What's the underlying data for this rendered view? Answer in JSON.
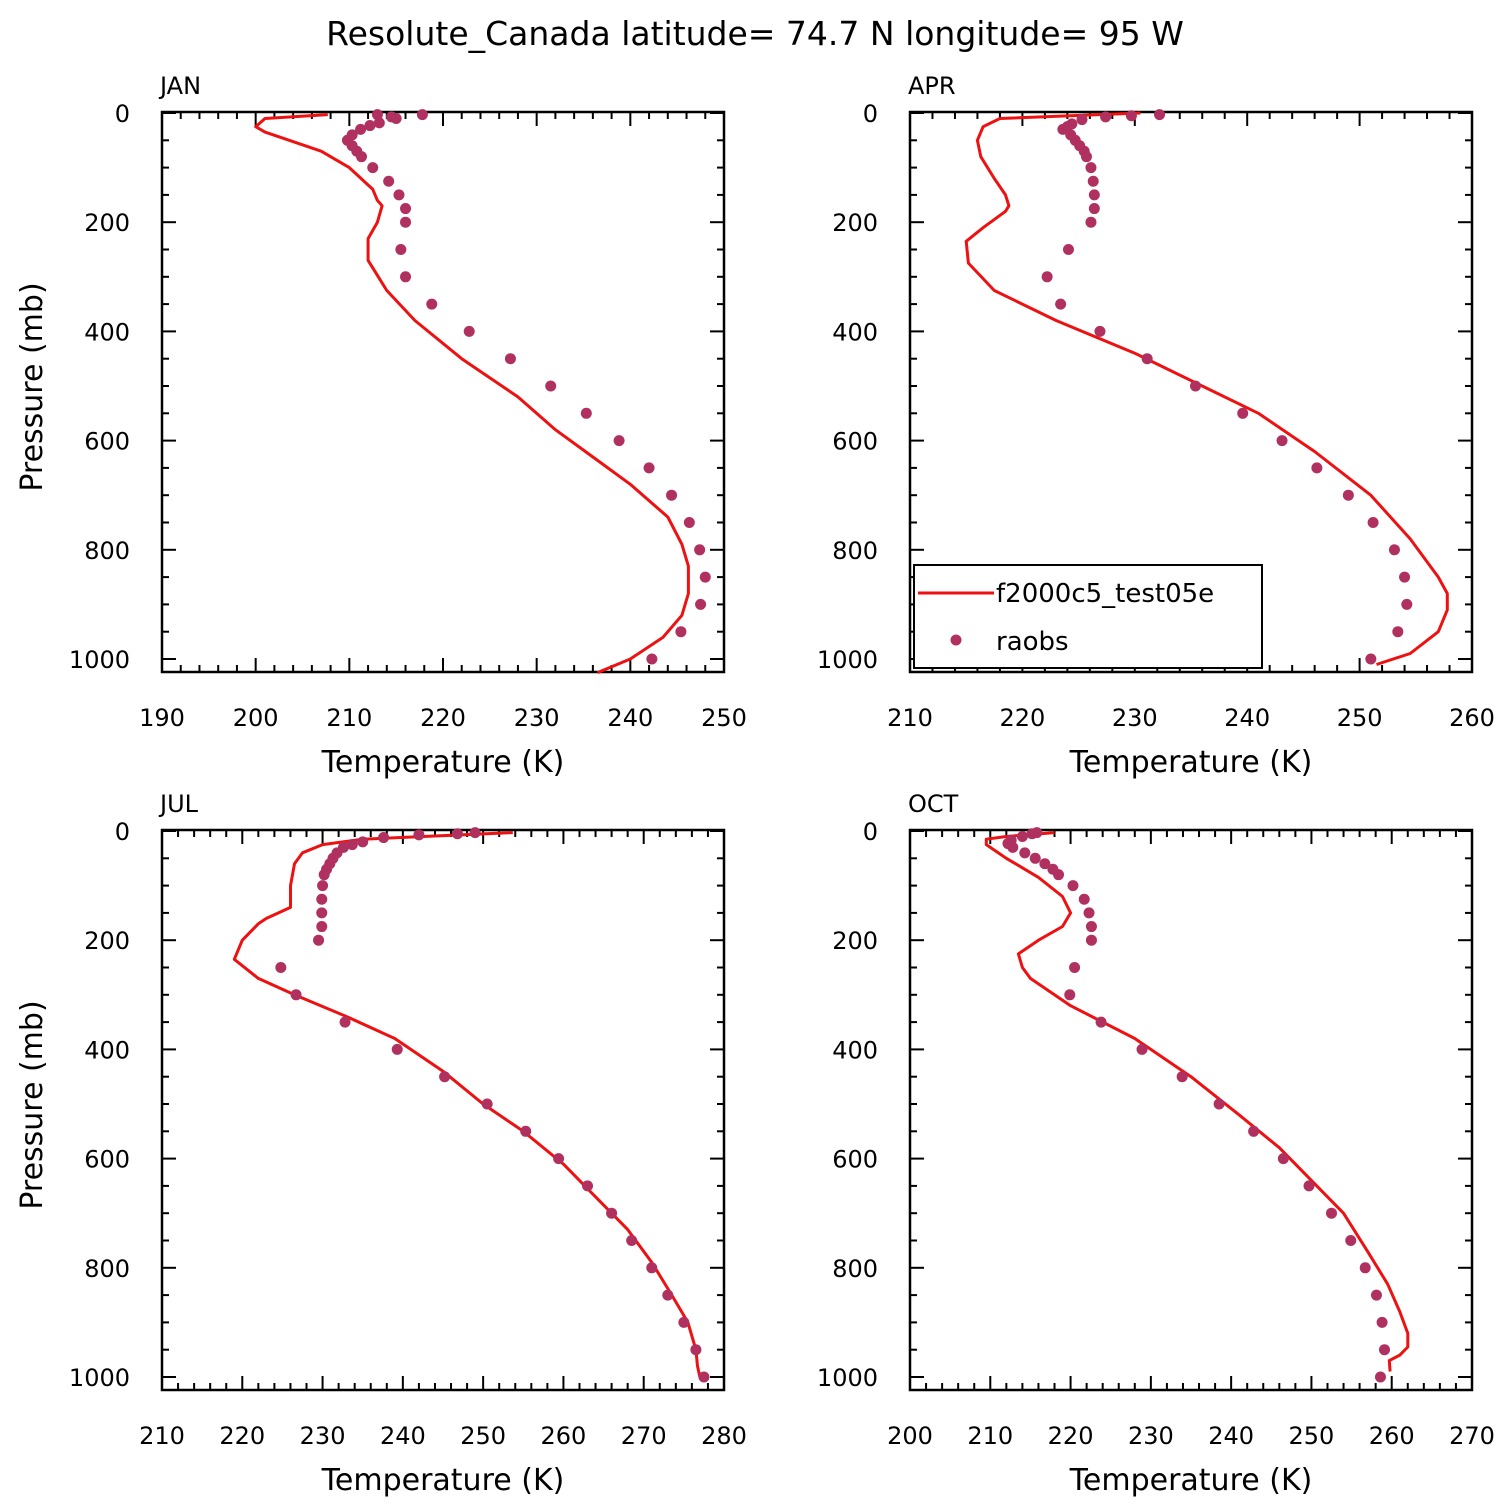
{
  "title": "Resolute_Canada  latitude= 74.7 N longitude= 95 W",
  "legend": {
    "model_label": "f2000c5_test05e",
    "obs_label": "raobs"
  },
  "colors": {
    "model": "#ee1111",
    "obs": "#b03060",
    "axes": "#000000"
  },
  "chart_data": [
    {
      "type": "line",
      "panel": "JAN",
      "xlabel": "Temperature (K)",
      "ylabel": "Pressure (mb)",
      "xlim": [
        190,
        250
      ],
      "xticks": [
        190,
        200,
        210,
        220,
        230,
        240,
        250
      ],
      "ylim": [
        1000,
        0
      ],
      "yticks": [
        0,
        200,
        400,
        600,
        800,
        1000
      ],
      "series": [
        {
          "name": "f2000c5_test05e",
          "kind": "line",
          "points": [
            [
              207.7,
              3
            ],
            [
              201,
              10
            ],
            [
              200,
              25
            ],
            [
              201,
              35
            ],
            [
              207,
              70
            ],
            [
              210,
              100
            ],
            [
              212.5,
              140
            ],
            [
              213,
              160
            ],
            [
              213.5,
              170
            ],
            [
              213,
              200
            ],
            [
              212,
              230
            ],
            [
              212,
              270
            ],
            [
              214,
              325
            ],
            [
              217,
              380
            ],
            [
              222,
              450
            ],
            [
              228,
              520
            ],
            [
              232,
              580
            ],
            [
              236,
              630
            ],
            [
              240,
              680
            ],
            [
              244,
              740
            ],
            [
              245.5,
              790
            ],
            [
              246.2,
              830
            ],
            [
              246.2,
              880
            ],
            [
              245.5,
              920
            ],
            [
              243.5,
              960
            ],
            [
              240,
              1000
            ],
            [
              236.5,
              1025
            ]
          ]
        },
        {
          "name": "raobs",
          "kind": "scatter",
          "points": [
            [
              217.8,
              3
            ],
            [
              213,
              3
            ],
            [
              214.5,
              7
            ],
            [
              215,
              10
            ],
            [
              213.2,
              18
            ],
            [
              212.2,
              23
            ],
            [
              211.2,
              30
            ],
            [
              210.3,
              40
            ],
            [
              209.8,
              50
            ],
            [
              210.3,
              60
            ],
            [
              210.8,
              70
            ],
            [
              211.3,
              80
            ],
            [
              212.5,
              100
            ],
            [
              214.2,
              125
            ],
            [
              215.3,
              150
            ],
            [
              216,
              175
            ],
            [
              216,
              200
            ],
            [
              215.5,
              250
            ],
            [
              216,
              300
            ],
            [
              218.8,
              350
            ],
            [
              222.8,
              400
            ],
            [
              227.2,
              450
            ],
            [
              231.5,
              500
            ],
            [
              235.3,
              550
            ],
            [
              238.8,
              600
            ],
            [
              242,
              650
            ],
            [
              244.4,
              700
            ],
            [
              246.3,
              750
            ],
            [
              247.4,
              800
            ],
            [
              248,
              850
            ],
            [
              247.5,
              900
            ],
            [
              245.4,
              950
            ],
            [
              242.3,
              1000
            ]
          ]
        }
      ]
    },
    {
      "type": "line",
      "panel": "APR",
      "xlabel": "Temperature (K)",
      "ylabel": "",
      "xlim": [
        210,
        260
      ],
      "xticks": [
        210,
        220,
        230,
        240,
        250,
        260
      ],
      "ylim": [
        1000,
        0
      ],
      "yticks": [
        0,
        200,
        400,
        600,
        800,
        1000
      ],
      "series": [
        {
          "name": "f2000c5_test05e",
          "kind": "line",
          "points": [
            [
              230.5,
              0
            ],
            [
              218,
              10
            ],
            [
              216.5,
              25
            ],
            [
              216,
              50
            ],
            [
              216.3,
              80
            ],
            [
              217.5,
              120
            ],
            [
              218.5,
              150
            ],
            [
              218.8,
              170
            ],
            [
              218.5,
              180
            ],
            [
              216.5,
              210
            ],
            [
              215,
              235
            ],
            [
              215.2,
              275
            ],
            [
              217.5,
              325
            ],
            [
              223,
              380
            ],
            [
              230,
              440
            ],
            [
              236,
              500
            ],
            [
              241,
              550
            ],
            [
              246,
              620
            ],
            [
              251,
              700
            ],
            [
              254.5,
              780
            ],
            [
              257,
              850
            ],
            [
              257.8,
              880
            ],
            [
              257.8,
              910
            ],
            [
              257,
              950
            ],
            [
              254.5,
              990
            ],
            [
              251.5,
              1010
            ]
          ]
        },
        {
          "name": "raobs",
          "kind": "scatter",
          "points": [
            [
              232.2,
              3
            ],
            [
              229.7,
              5
            ],
            [
              227.4,
              7
            ],
            [
              225.3,
              12
            ],
            [
              224.4,
              20
            ],
            [
              224,
              25
            ],
            [
              223.6,
              30
            ],
            [
              224.3,
              40
            ],
            [
              224.7,
              50
            ],
            [
              225.1,
              60
            ],
            [
              225.5,
              70
            ],
            [
              225.7,
              80
            ],
            [
              226.1,
              100
            ],
            [
              226.3,
              125
            ],
            [
              226.4,
              150
            ],
            [
              226.4,
              175
            ],
            [
              226.1,
              200
            ],
            [
              224.1,
              250
            ],
            [
              222.2,
              300
            ],
            [
              223.4,
              350
            ],
            [
              226.9,
              400
            ],
            [
              231.1,
              450
            ],
            [
              235.4,
              500
            ],
            [
              239.6,
              550
            ],
            [
              243.1,
              600
            ],
            [
              246.2,
              650
            ],
            [
              249,
              700
            ],
            [
              251.2,
              750
            ],
            [
              253.1,
              800
            ],
            [
              254,
              850
            ],
            [
              254.2,
              900
            ],
            [
              253.4,
              950
            ],
            [
              251,
              1000
            ]
          ]
        }
      ]
    },
    {
      "type": "line",
      "panel": "JUL",
      "xlabel": "Temperature (K)",
      "ylabel": "Pressure (mb)",
      "xlim": [
        210,
        280
      ],
      "xticks": [
        210,
        220,
        230,
        240,
        250,
        260,
        270,
        280
      ],
      "ylim": [
        1000,
        0
      ],
      "yticks": [
        0,
        200,
        400,
        600,
        800,
        1000
      ],
      "series": [
        {
          "name": "f2000c5_test05e",
          "kind": "line",
          "points": [
            [
              253.7,
              3
            ],
            [
              235,
              15
            ],
            [
              230,
              25
            ],
            [
              227.5,
              40
            ],
            [
              226.5,
              60
            ],
            [
              226,
              100
            ],
            [
              226,
              140
            ],
            [
              223,
              160
            ],
            [
              222,
              170
            ],
            [
              220,
              200
            ],
            [
              219,
              235
            ],
            [
              222,
              270
            ],
            [
              226.5,
              300
            ],
            [
              233,
              340
            ],
            [
              239,
              380
            ],
            [
              245,
              440
            ],
            [
              250,
              500
            ],
            [
              255,
              550
            ],
            [
              260,
              610
            ],
            [
              264,
              670
            ],
            [
              268,
              730
            ],
            [
              271,
              790
            ],
            [
              273.5,
              850
            ],
            [
              275.5,
              900
            ],
            [
              276.5,
              950
            ],
            [
              276.7,
              980
            ],
            [
              277,
              1000
            ]
          ]
        },
        {
          "name": "raobs",
          "kind": "scatter",
          "points": [
            [
              249,
              3
            ],
            [
              246.8,
              5
            ],
            [
              242,
              7
            ],
            [
              237.6,
              12
            ],
            [
              235,
              20
            ],
            [
              233.7,
              25
            ],
            [
              232.6,
              30
            ],
            [
              231.8,
              40
            ],
            [
              231.3,
              50
            ],
            [
              230.9,
              60
            ],
            [
              230.5,
              70
            ],
            [
              230.2,
              80
            ],
            [
              230,
              100
            ],
            [
              229.9,
              125
            ],
            [
              229.9,
              150
            ],
            [
              229.9,
              175
            ],
            [
              229.5,
              200
            ],
            [
              224.8,
              250
            ],
            [
              226.7,
              300
            ],
            [
              232.8,
              350
            ],
            [
              239.3,
              400
            ],
            [
              245.2,
              450
            ],
            [
              250.5,
              500
            ],
            [
              255.3,
              550
            ],
            [
              259.4,
              600
            ],
            [
              263,
              650
            ],
            [
              266,
              700
            ],
            [
              268.5,
              750
            ],
            [
              271,
              800
            ],
            [
              273,
              850
            ],
            [
              275,
              900
            ],
            [
              276.5,
              950
            ],
            [
              277.5,
              1000
            ]
          ]
        }
      ]
    },
    {
      "type": "line",
      "panel": "OCT",
      "xlabel": "Temperature (K)",
      "ylabel": "",
      "xlim": [
        200,
        270
      ],
      "xticks": [
        200,
        210,
        220,
        230,
        240,
        250,
        260,
        270
      ],
      "ylim": [
        1000,
        0
      ],
      "yticks": [
        0,
        200,
        400,
        600,
        800,
        1000
      ],
      "series": [
        {
          "name": "f2000c5_test05e",
          "kind": "line",
          "points": [
            [
              218,
              3
            ],
            [
              212,
              10
            ],
            [
              209.5,
              15
            ],
            [
              209.5,
              25
            ],
            [
              212,
              50
            ],
            [
              216,
              85
            ],
            [
              219,
              120
            ],
            [
              220,
              150
            ],
            [
              219,
              175
            ],
            [
              216,
              200
            ],
            [
              213.5,
              225
            ],
            [
              214,
              250
            ],
            [
              215,
              270
            ],
            [
              220,
              320
            ],
            [
              228,
              380
            ],
            [
              235,
              450
            ],
            [
              241,
              520
            ],
            [
              246,
              580
            ],
            [
              250,
              640
            ],
            [
              254,
              700
            ],
            [
              257,
              770
            ],
            [
              259.5,
              830
            ],
            [
              261,
              880
            ],
            [
              262,
              920
            ],
            [
              262,
              945
            ],
            [
              261,
              960
            ],
            [
              259.7,
              970
            ],
            [
              259.8,
              990
            ]
          ]
        },
        {
          "name": "raobs",
          "kind": "scatter",
          "points": [
            [
              215.8,
              3
            ],
            [
              215.2,
              5
            ],
            [
              214,
              10
            ],
            [
              212.6,
              17
            ],
            [
              212.2,
              23
            ],
            [
              212.8,
              30
            ],
            [
              214.3,
              40
            ],
            [
              215.6,
              50
            ],
            [
              216.8,
              60
            ],
            [
              217.8,
              70
            ],
            [
              218.5,
              80
            ],
            [
              220.3,
              100
            ],
            [
              221.7,
              125
            ],
            [
              222.3,
              150
            ],
            [
              222.6,
              175
            ],
            [
              222.6,
              200
            ],
            [
              220.5,
              250
            ],
            [
              219.9,
              300
            ],
            [
              223.8,
              350
            ],
            [
              228.9,
              400
            ],
            [
              233.9,
              450
            ],
            [
              238.5,
              500
            ],
            [
              242.8,
              550
            ],
            [
              246.5,
              600
            ],
            [
              249.7,
              650
            ],
            [
              252.5,
              700
            ],
            [
              254.9,
              750
            ],
            [
              256.7,
              800
            ],
            [
              258.1,
              850
            ],
            [
              258.8,
              900
            ],
            [
              259.1,
              950
            ],
            [
              258.6,
              1000
            ]
          ]
        }
      ]
    }
  ]
}
